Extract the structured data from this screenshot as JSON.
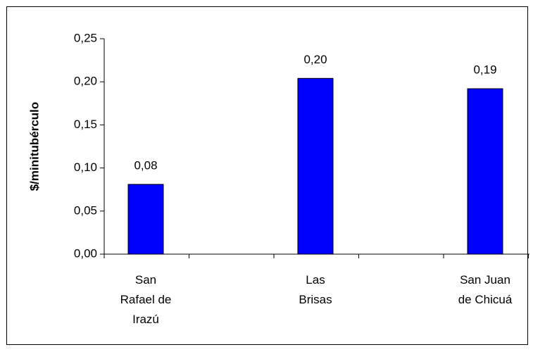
{
  "chart_data": {
    "type": "bar",
    "ylabel": "$/minitubérculo",
    "categories": [
      "San\nRafael de\nIrazú",
      "Las\nBrisas",
      "San Juan\nde Chicuá"
    ],
    "values": [
      0.081,
      0.204,
      0.192
    ],
    "value_labels": [
      "0,08",
      "0,20",
      "0,19"
    ],
    "color": "#0000ff",
    "ylim": [
      0,
      0.25
    ],
    "yticks": [
      {
        "value": 0,
        "label": "0,00"
      },
      {
        "value": 0.05,
        "label": "0,05"
      },
      {
        "value": 0.1,
        "label": "0,10"
      },
      {
        "value": 0.15,
        "label": "0,15"
      },
      {
        "value": 0.2,
        "label": "0,20"
      },
      {
        "value": 0.25,
        "label": "0,25"
      }
    ],
    "grid": false
  }
}
